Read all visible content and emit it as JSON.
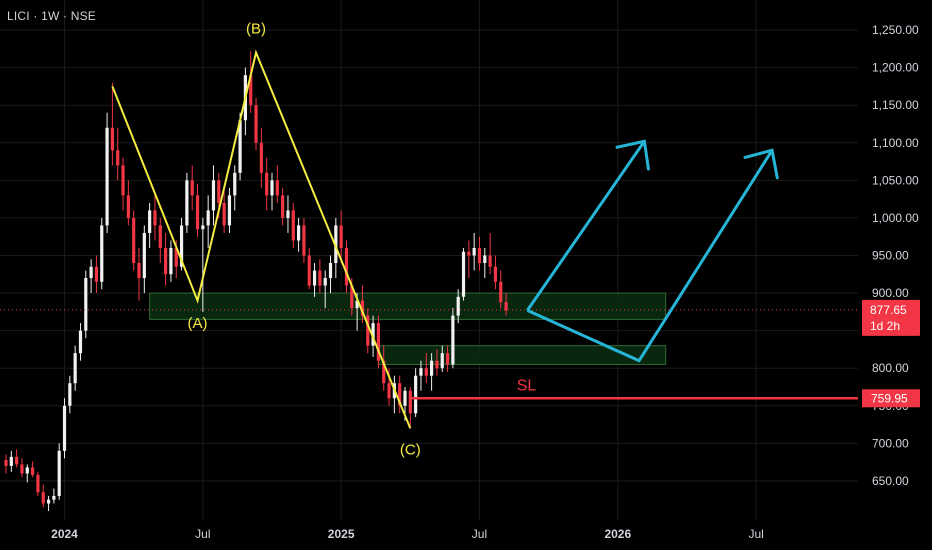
{
  "header": {
    "symbol_title": "LICI · 1W · NSE"
  },
  "colors": {
    "background": "#000000",
    "grid": "#1a1a1a",
    "axis_text": "#d1d4dc",
    "candle_up": "#f2f2f2",
    "candle_down": "#f23645",
    "wave_line": "#f5ec42",
    "arrow": "#26b5d6",
    "zone_fill": "#0b2e10",
    "zone_border": "#2f6b34",
    "sl_line": "#f23645",
    "price_badge": "#f23645"
  },
  "chart_data": {
    "type": "candlestick",
    "symbol": "LICI",
    "interval": "1W",
    "exchange": "NSE",
    "ylim": [
      610,
      1275
    ],
    "yticks": [
      650,
      700,
      750,
      800,
      850,
      900,
      950,
      1000,
      1050,
      1100,
      1150,
      1200,
      1250
    ],
    "ytick_labels": [
      "650.00",
      "700.00",
      "750.00",
      "800.00",
      "",
      "900.00",
      "950.00",
      "1,000.00",
      "1,050.00",
      "1,100.00",
      "1,150.00",
      "1,200.00",
      "1,250.00"
    ],
    "x_range_weeks": [
      0,
      120
    ],
    "xticks": [
      {
        "label": "2024",
        "week": 11,
        "bold": true
      },
      {
        "label": "Jul",
        "week": 37,
        "bold": false
      },
      {
        "label": "2025",
        "week": 63,
        "bold": true
      },
      {
        "label": "Jul",
        "week": 89,
        "bold": false
      },
      {
        "label": "2026",
        "week": 115,
        "bold": true
      },
      {
        "label": "Jul",
        "week": 141,
        "bold": false
      }
    ],
    "current_price": {
      "value": 877.65,
      "label": "877.65",
      "countdown": "1d 2h"
    },
    "stop_loss": {
      "value": 759.95,
      "label": "759.95",
      "text": "SL",
      "from_week": 76
    },
    "zones": [
      {
        "from_week": 27,
        "to_week": 124,
        "top": 900,
        "bottom": 865
      },
      {
        "from_week": 70,
        "to_week": 124,
        "top": 830,
        "bottom": 805
      }
    ],
    "wave_points": [
      {
        "week": 20,
        "price": 1175
      },
      {
        "week": 36,
        "price": 890
      },
      {
        "week": 47,
        "price": 1220
      },
      {
        "week": 76,
        "price": 720
      }
    ],
    "wave_labels": [
      {
        "text": "(A)",
        "week": 36,
        "price": 860
      },
      {
        "text": "(B)",
        "week": 47,
        "price": 1252
      },
      {
        "text": "(C)",
        "week": 76,
        "price": 692
      }
    ],
    "projection_1": [
      {
        "week": 98,
        "price": 877
      },
      {
        "week": 119,
        "price": 810
      },
      {
        "week": 144,
        "price": 1090
      }
    ],
    "projection_2": [
      {
        "week": 98,
        "price": 877
      },
      {
        "week": 120,
        "price": 1102
      }
    ],
    "candles": [
      [
        678,
        685,
        660,
        670
      ],
      [
        670,
        690,
        662,
        682
      ],
      [
        682,
        692,
        668,
        672
      ],
      [
        672,
        680,
        655,
        660
      ],
      [
        660,
        672,
        648,
        668
      ],
      [
        668,
        676,
        655,
        658
      ],
      [
        658,
        662,
        630,
        635
      ],
      [
        635,
        645,
        615,
        620
      ],
      [
        620,
        630,
        610,
        625
      ],
      [
        625,
        640,
        620,
        630
      ],
      [
        630,
        700,
        625,
        690
      ],
      [
        690,
        760,
        680,
        750
      ],
      [
        750,
        790,
        740,
        780
      ],
      [
        780,
        830,
        770,
        820
      ],
      [
        820,
        860,
        810,
        850
      ],
      [
        850,
        930,
        840,
        920
      ],
      [
        920,
        945,
        900,
        935
      ],
      [
        935,
        950,
        900,
        915
      ],
      [
        915,
        1000,
        905,
        990
      ],
      [
        990,
        1140,
        980,
        1120
      ],
      [
        1120,
        1180,
        1070,
        1090
      ],
      [
        1090,
        1120,
        1050,
        1070
      ],
      [
        1070,
        1080,
        1010,
        1030
      ],
      [
        1030,
        1050,
        990,
        1000
      ],
      [
        1000,
        1010,
        930,
        940
      ],
      [
        940,
        960,
        890,
        920
      ],
      [
        920,
        990,
        900,
        980
      ],
      [
        980,
        1020,
        960,
        1010
      ],
      [
        1010,
        1030,
        970,
        990
      ],
      [
        990,
        1000,
        940,
        960
      ],
      [
        960,
        980,
        910,
        925
      ],
      [
        925,
        970,
        915,
        960
      ],
      [
        960,
        970,
        920,
        935
      ],
      [
        935,
        1000,
        930,
        990
      ],
      [
        990,
        1060,
        980,
        1050
      ],
      [
        1050,
        1070,
        1010,
        1030
      ],
      [
        1030,
        1045,
        975,
        985
      ],
      [
        985,
        1000,
        875,
        990
      ],
      [
        990,
        1030,
        960,
        1010
      ],
      [
        1010,
        1070,
        990,
        1050
      ],
      [
        1050,
        1060,
        1000,
        1020
      ],
      [
        1020,
        1040,
        980,
        990
      ],
      [
        990,
        1040,
        980,
        1030
      ],
      [
        1030,
        1070,
        1010,
        1060
      ],
      [
        1060,
        1140,
        1050,
        1130
      ],
      [
        1130,
        1200,
        1110,
        1190
      ],
      [
        1190,
        1222,
        1140,
        1150
      ],
      [
        1150,
        1160,
        1090,
        1100
      ],
      [
        1100,
        1120,
        1040,
        1060
      ],
      [
        1060,
        1080,
        1010,
        1030
      ],
      [
        1030,
        1060,
        1010,
        1050
      ],
      [
        1050,
        1070,
        1020,
        1030
      ],
      [
        1030,
        1040,
        990,
        1000
      ],
      [
        1000,
        1030,
        980,
        1010
      ],
      [
        1010,
        1020,
        960,
        970
      ],
      [
        970,
        1000,
        955,
        990
      ],
      [
        990,
        1000,
        940,
        950
      ],
      [
        950,
        960,
        905,
        910
      ],
      [
        910,
        940,
        895,
        930
      ],
      [
        930,
        945,
        900,
        910
      ],
      [
        910,
        930,
        880,
        920
      ],
      [
        920,
        950,
        900,
        940
      ],
      [
        940,
        1000,
        920,
        990
      ],
      [
        990,
        1010,
        940,
        960
      ],
      [
        960,
        970,
        900,
        910
      ],
      [
        910,
        920,
        870,
        880
      ],
      [
        880,
        900,
        850,
        890
      ],
      [
        890,
        910,
        860,
        870
      ],
      [
        870,
        880,
        820,
        830
      ],
      [
        830,
        870,
        815,
        860
      ],
      [
        860,
        870,
        800,
        810
      ],
      [
        810,
        830,
        770,
        780
      ],
      [
        780,
        800,
        750,
        760
      ],
      [
        760,
        790,
        740,
        780
      ],
      [
        780,
        790,
        740,
        750
      ],
      [
        750,
        775,
        730,
        770
      ],
      [
        770,
        775,
        720,
        740
      ],
      [
        740,
        800,
        735,
        790
      ],
      [
        790,
        810,
        770,
        800
      ],
      [
        800,
        820,
        780,
        790
      ],
      [
        790,
        820,
        770,
        810
      ],
      [
        810,
        825,
        790,
        800
      ],
      [
        800,
        830,
        795,
        820
      ],
      [
        820,
        830,
        795,
        805
      ],
      [
        805,
        880,
        800,
        870
      ],
      [
        870,
        905,
        860,
        895
      ],
      [
        895,
        960,
        890,
        955
      ],
      [
        955,
        970,
        920,
        950
      ],
      [
        950,
        980,
        930,
        960
      ],
      [
        960,
        975,
        930,
        940
      ],
      [
        940,
        960,
        920,
        950
      ],
      [
        950,
        980,
        925,
        935
      ],
      [
        935,
        950,
        905,
        915
      ],
      [
        915,
        930,
        880,
        888
      ],
      [
        888,
        900,
        870,
        877
      ]
    ]
  }
}
